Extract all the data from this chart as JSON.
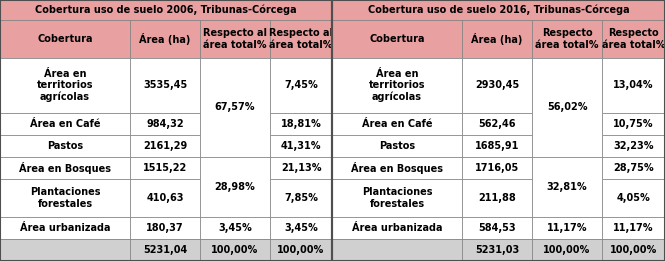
{
  "title_2006": "Cobertura uso de suelo 2006, Tribunas-Córcega",
  "title_2016": "Cobertura uso de suelo 2016, Tribunas-Córcega",
  "header_color": "#e8a0a0",
  "title_color": "#e8a0a0",
  "total_row_color": "#d0d0d0",
  "bg_color": "#FFFFFF",
  "border_color": "#7f7f7f",
  "col_headers_left": [
    "Cobertura",
    "Área (ha)",
    "Respecto al\nárea total%",
    "Respecto al\nárea total%"
  ],
  "col_headers_right": [
    "Cobertura",
    "Área (ha)",
    "Respecto\nárea total%",
    "Respecto\nárea total%"
  ],
  "rows_2006": [
    [
      "Área en\nterritorios\nagrícolas",
      "3535,45",
      "",
      "7,45%"
    ],
    [
      "Área en Café",
      "984,32",
      "",
      "18,81%"
    ],
    [
      "Pastos",
      "2161,29",
      "",
      "41,31%"
    ],
    [
      "Área en Bosques",
      "1515,22",
      "",
      "21,13%"
    ],
    [
      "Plantaciones\nforestales",
      "410,63",
      "",
      "7,85%"
    ],
    [
      "Área urbanizada",
      "180,37",
      "3,45%",
      "3,45%"
    ],
    [
      "",
      "5231,04",
      "100,00%",
      "100,00%"
    ]
  ],
  "rows_2016": [
    [
      "Área en\nterritorios\nagrícolas",
      "2930,45",
      "",
      "13,04%"
    ],
    [
      "Área en Café",
      "562,46",
      "",
      "10,75%"
    ],
    [
      "Pastos",
      "1685,91",
      "",
      "32,23%"
    ],
    [
      "Área en Bosques",
      "1716,05",
      "",
      "28,75%"
    ],
    [
      "Plantaciones\nforestales",
      "211,88",
      "",
      "4,05%"
    ],
    [
      "Área urbanizada",
      "584,53",
      "11,17%",
      "11,17%"
    ],
    [
      "",
      "5231,03",
      "100,00%",
      "100,00%"
    ]
  ],
  "merged_col2_left": [
    {
      "rows": [
        0,
        1,
        2
      ],
      "text": "67,57%"
    },
    {
      "rows": [
        3,
        4
      ],
      "text": "28,98%"
    },
    {
      "rows": [
        5
      ],
      "text": "3,45%"
    },
    {
      "rows": [
        6
      ],
      "text": "100,00%"
    }
  ],
  "merged_col2_right": [
    {
      "rows": [
        0,
        1,
        2
      ],
      "text": "56,02%"
    },
    {
      "rows": [
        3,
        4
      ],
      "text": "32,81%"
    },
    {
      "rows": [
        5
      ],
      "text": "11,17%"
    },
    {
      "rows": [
        6
      ],
      "text": "100,00%"
    }
  ]
}
